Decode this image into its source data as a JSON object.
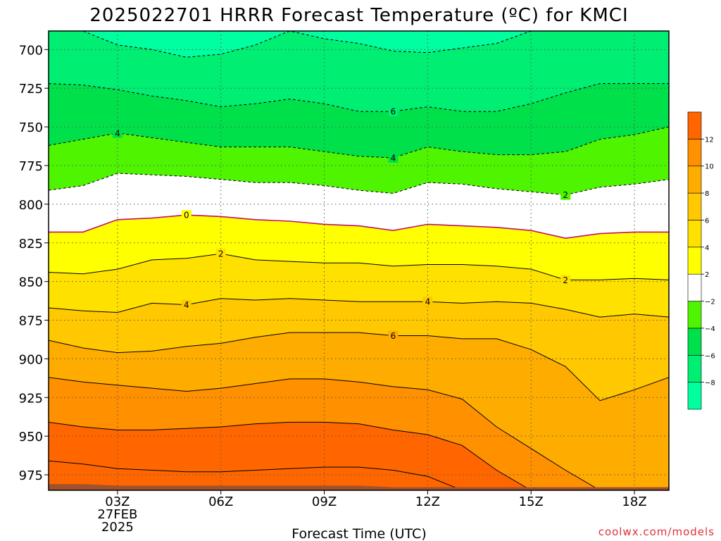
{
  "chart_data": {
    "type": "heatmap",
    "title": "2025022701 HRRR Forecast Temperature (ºC) for KMCI",
    "xlabel": "Forecast Time (UTC)",
    "ylabel": "",
    "x_ticks": [
      "03Z",
      "06Z",
      "09Z",
      "12Z",
      "15Z",
      "18Z"
    ],
    "x_date_label": [
      "27FEB",
      "2025"
    ],
    "y_ticks": [
      700,
      725,
      750,
      775,
      800,
      825,
      850,
      875,
      900,
      925,
      950,
      975
    ],
    "xlim_hours": [
      1,
      19
    ],
    "ylim_pressure_hPa": [
      688,
      985
    ],
    "colorbar": {
      "ticks": [
        -8,
        -6,
        -4,
        -2,
        2,
        4,
        6,
        8,
        10,
        12
      ],
      "colors": [
        "#00ff9f",
        "#00ef73",
        "#00e04a",
        "#4ff500",
        "#ffffff",
        "#ffff00",
        "#ffe100",
        "#ffc800",
        "#ffac00",
        "#ff9000",
        "#ff6600"
      ]
    },
    "grid": true,
    "times": [
      1,
      2,
      3,
      4,
      5,
      6,
      7,
      8,
      9,
      10,
      11,
      12,
      13,
      14,
      15,
      16,
      17,
      18,
      19
    ],
    "isotherms": [
      {
        "value": -8,
        "style": "dashed",
        "p": [
          688,
          688,
          697,
          700,
          705,
          703,
          697,
          688,
          693,
          696,
          701,
          702,
          699,
          696,
          688,
          688,
          688,
          688,
          688
        ],
        "labeled_at": []
      },
      {
        "value": -6,
        "style": "dashed",
        "p": [
          722,
          723,
          726,
          730,
          733,
          737,
          735,
          732,
          735,
          740,
          740,
          737,
          740,
          740,
          735,
          728,
          722,
          722,
          722
        ],
        "labeled_at": [
          11
        ]
      },
      {
        "value": -4,
        "style": "dashed",
        "p": [
          762,
          758,
          754,
          757,
          760,
          763,
          763,
          763,
          766,
          769,
          770,
          763,
          766,
          768,
          768,
          766,
          758,
          755,
          750
        ],
        "labeled_at": [
          3,
          11
        ]
      },
      {
        "value": -2,
        "style": "dashed",
        "p": [
          791,
          788,
          780,
          781,
          782,
          784,
          786,
          786,
          788,
          791,
          793,
          786,
          787,
          790,
          792,
          794,
          789,
          787,
          784
        ],
        "labeled_at": [
          16
        ]
      },
      {
        "value": 0,
        "style": "solid",
        "p": [
          818,
          818,
          810,
          809,
          807,
          808,
          810,
          811,
          813,
          814,
          817,
          813,
          814,
          815,
          817,
          822,
          819,
          818,
          818
        ],
        "labeled_at": [
          5
        ]
      },
      {
        "value": 2,
        "style": "solid",
        "p": [
          844,
          845,
          842,
          836,
          835,
          832,
          836,
          837,
          838,
          838,
          840,
          839,
          839,
          840,
          842,
          849,
          849,
          848,
          849
        ],
        "labeled_at": [
          6,
          16
        ]
      },
      {
        "value": 4,
        "style": "solid",
        "p": [
          867,
          869,
          870,
          864,
          865,
          861,
          862,
          861,
          862,
          863,
          863,
          863,
          864,
          863,
          864,
          868,
          873,
          871,
          873
        ],
        "labeled_at": [
          5,
          12
        ]
      },
      {
        "value": 6,
        "style": "solid",
        "p": [
          888,
          893,
          896,
          895,
          892,
          890,
          886,
          883,
          883,
          883,
          885,
          885,
          887,
          887,
          894,
          905,
          927,
          920,
          912
        ],
        "labeled_at": [
          11
        ]
      },
      {
        "value": 8,
        "style": "solid",
        "p": [
          912,
          915,
          917,
          919,
          921,
          919,
          916,
          913,
          913,
          915,
          918,
          920,
          926,
          944,
          958,
          972,
          985,
          985,
          985
        ],
        "labeled_at": []
      },
      {
        "value": 10,
        "style": "solid",
        "p": [
          941,
          944,
          946,
          946,
          945,
          944,
          942,
          941,
          941,
          942,
          946,
          949,
          956,
          972,
          985,
          985,
          985,
          985,
          985
        ],
        "labeled_at": []
      },
      {
        "value": 12,
        "style": "solid",
        "p": [
          966,
          968,
          971,
          972,
          973,
          973,
          972,
          971,
          970,
          970,
          972,
          976,
          985,
          985,
          985,
          985,
          985,
          985,
          985
        ],
        "labeled_at": []
      }
    ],
    "surface_pressure_hPa": [
      981,
      981,
      982,
      982,
      982,
      982,
      982,
      982,
      982,
      982,
      983,
      983,
      983,
      983,
      983,
      983,
      983,
      983,
      983
    ]
  },
  "credit": "coolwx.com/models"
}
